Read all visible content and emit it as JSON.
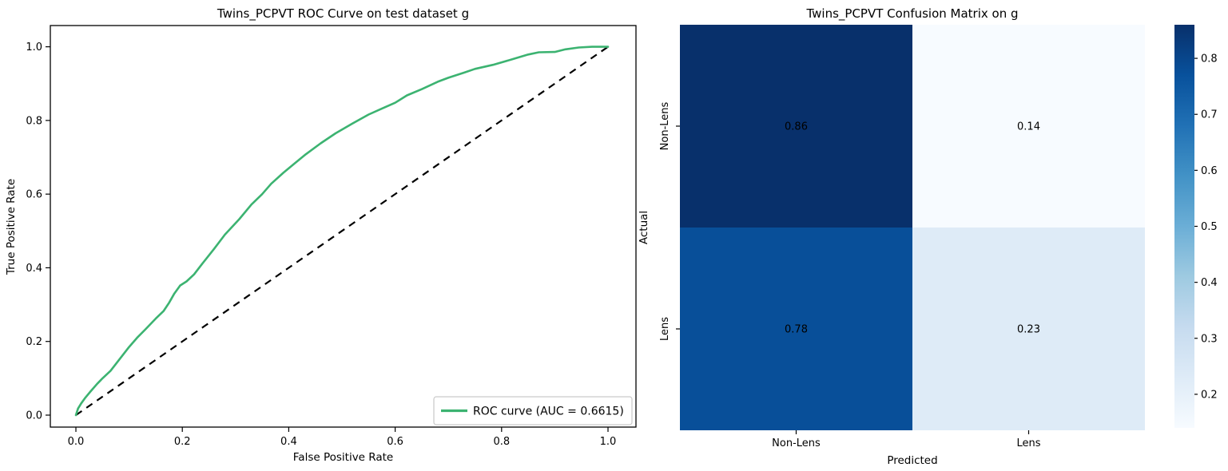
{
  "roc": {
    "title": "Twins_PCPVT ROC Curve on test dataset g",
    "xlabel": "False Positive Rate",
    "ylabel": "True Positive Rate",
    "xtick_labels": [
      "0.0",
      "0.2",
      "0.4",
      "0.6",
      "0.8",
      "1.0"
    ],
    "ytick_labels": [
      "0.0",
      "0.2",
      "0.4",
      "0.6",
      "0.8",
      "1.0"
    ],
    "legend_label": "ROC curve (AUC = 0.6615)",
    "auc_value": "0.6615"
  },
  "cm": {
    "title": "Twins_PCPVT Confusion Matrix on g",
    "xlabel": "Predicted",
    "ylabel": "Actual",
    "x_categories": [
      "Non-Lens",
      "Lens"
    ],
    "y_categories": [
      "Non-Lens",
      "Lens"
    ],
    "cell_labels": [
      [
        "0.86",
        "0.14"
      ],
      [
        "0.78",
        "0.23"
      ]
    ],
    "cell_colors": [
      [
        "#08306b",
        "#f7fbff"
      ],
      [
        "#084f99",
        "#deebf7"
      ]
    ],
    "cell_text_colors": [
      [
        "#ffffff",
        "#262626"
      ],
      [
        "#ffffff",
        "#262626"
      ]
    ],
    "colorbar_tick_labels": [
      "0.2",
      "0.3",
      "0.4",
      "0.5",
      "0.6",
      "0.7",
      "0.8"
    ]
  },
  "chart_data": [
    {
      "type": "line",
      "title": "Twins_PCPVT ROC Curve on test dataset g",
      "xlabel": "False Positive Rate",
      "ylabel": "True Positive Rate",
      "xlim": [
        0.0,
        1.0
      ],
      "ylim": [
        0.0,
        1.0
      ],
      "xticks": [
        0.0,
        0.2,
        0.4,
        0.6,
        0.8,
        1.0
      ],
      "yticks": [
        0.0,
        0.2,
        0.4,
        0.6,
        0.8,
        1.0
      ],
      "grid": false,
      "legend_position": "lower right",
      "auc": 0.6615,
      "series": [
        {
          "name": "ROC curve (AUC = 0.6615)",
          "color": "#3cb371",
          "style": "solid",
          "points": [
            [
              0,
              0
            ],
            [
              0.004,
              0.018
            ],
            [
              0.01,
              0.032
            ],
            [
              0.018,
              0.048
            ],
            [
              0.028,
              0.065
            ],
            [
              0.04,
              0.085
            ],
            [
              0.05,
              0.1
            ],
            [
              0.065,
              0.12
            ],
            [
              0.08,
              0.148
            ],
            [
              0.1,
              0.185
            ],
            [
              0.115,
              0.21
            ],
            [
              0.13,
              0.232
            ],
            [
              0.15,
              0.262
            ],
            [
              0.165,
              0.283
            ],
            [
              0.175,
              0.305
            ],
            [
              0.185,
              0.33
            ],
            [
              0.196,
              0.352
            ],
            [
              0.208,
              0.363
            ],
            [
              0.222,
              0.382
            ],
            [
              0.237,
              0.41
            ],
            [
              0.26,
              0.452
            ],
            [
              0.28,
              0.49
            ],
            [
              0.307,
              0.532
            ],
            [
              0.33,
              0.572
            ],
            [
              0.35,
              0.6
            ],
            [
              0.367,
              0.628
            ],
            [
              0.39,
              0.658
            ],
            [
              0.41,
              0.682
            ],
            [
              0.432,
              0.708
            ],
            [
              0.46,
              0.738
            ],
            [
              0.488,
              0.765
            ],
            [
              0.52,
              0.792
            ],
            [
              0.55,
              0.816
            ],
            [
              0.575,
              0.832
            ],
            [
              0.6,
              0.848
            ],
            [
              0.622,
              0.868
            ],
            [
              0.65,
              0.885
            ],
            [
              0.68,
              0.905
            ],
            [
              0.7,
              0.916
            ],
            [
              0.73,
              0.93
            ],
            [
              0.75,
              0.94
            ],
            [
              0.784,
              0.951
            ],
            [
              0.82,
              0.966
            ],
            [
              0.85,
              0.979
            ],
            [
              0.87,
              0.985
            ],
            [
              0.9,
              0.986
            ],
            [
              0.92,
              0.993
            ],
            [
              0.945,
              0.998
            ],
            [
              0.97,
              1
            ],
            [
              1,
              1
            ]
          ]
        },
        {
          "name": "chance diagonal",
          "color": "#000000",
          "style": "dashed",
          "points": [
            [
              0,
              0
            ],
            [
              1,
              1
            ]
          ]
        }
      ]
    },
    {
      "type": "heatmap",
      "title": "Twins_PCPVT Confusion Matrix on g",
      "xlabel": "Predicted",
      "ylabel": "Actual",
      "x_categories": [
        "Non-Lens",
        "Lens"
      ],
      "y_categories": [
        "Non-Lens",
        "Lens"
      ],
      "values": [
        [
          0.86,
          0.14
        ],
        [
          0.78,
          0.23
        ]
      ],
      "colormap": "Blues",
      "colormap_stops": [
        "#f7fbff",
        "#deebf7",
        "#c6dbef",
        "#9ecae1",
        "#6baed6",
        "#4292c6",
        "#2171b5",
        "#08519c",
        "#08306b"
      ],
      "vmin": 0.14,
      "vmax": 0.86,
      "colorbar_ticks": [
        0.2,
        0.3,
        0.4,
        0.5,
        0.6,
        0.7,
        0.8
      ],
      "legend_position": "right colorbar"
    }
  ]
}
